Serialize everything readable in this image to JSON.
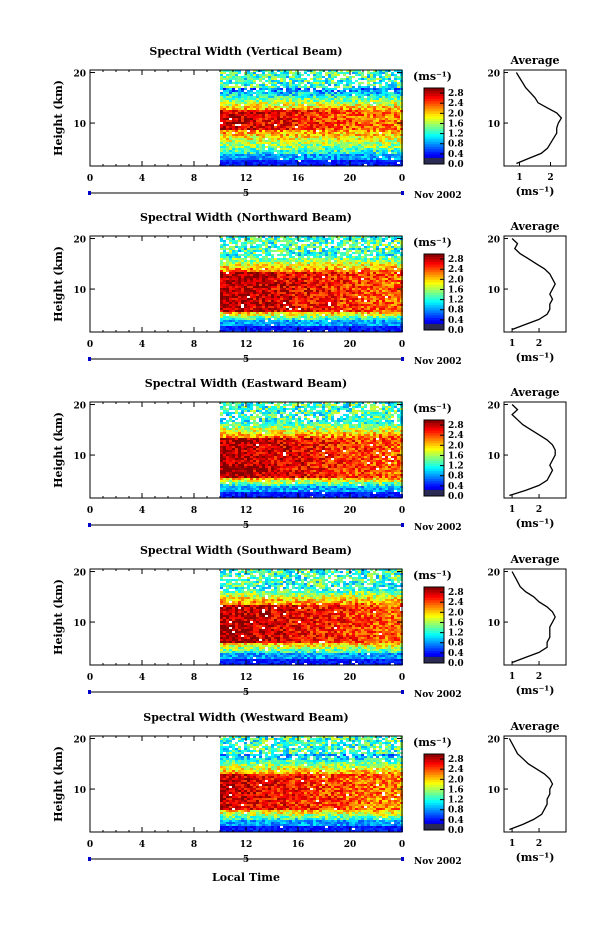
{
  "chart_data": [
    {
      "type": "heatmap",
      "title": "Spectral Width (Vertical Beam)",
      "ylabel": "Height (km)",
      "xlabel": "",
      "date_label": "Nov 2002",
      "day_label": "5",
      "x_ticks": [
        "0",
        "4",
        "8",
        "12",
        "16",
        "20",
        "0"
      ],
      "y_ticks": [
        "10",
        "20"
      ],
      "xlim": [
        0,
        24
      ],
      "ylim": [
        1.5,
        20.5
      ],
      "data_start_hour": 10,
      "core": {
        "low": 8.5,
        "high": 12.5,
        "level": 2.8
      },
      "colorbar": {
        "unit": "(ms⁻¹)",
        "ticks": [
          "0.0",
          "0.4",
          "0.8",
          "1.2",
          "1.6",
          "2.0",
          "2.4",
          "2.8"
        ],
        "range": [
          0,
          3.0
        ]
      },
      "profile": {
        "title": "Average",
        "xlabel": "(ms⁻¹)",
        "x_ticks": [
          "1",
          "2"
        ],
        "xlim": [
          0.5,
          2.5
        ],
        "y_ticks": [
          "10",
          "20"
        ],
        "heights": [
          2,
          3,
          4,
          5,
          6,
          7,
          8,
          9,
          10,
          11,
          12,
          13,
          14,
          15,
          16,
          17,
          18,
          19,
          20
        ],
        "values": [
          0.9,
          1.3,
          1.7,
          1.9,
          2.0,
          2.1,
          2.2,
          2.2,
          2.25,
          2.35,
          2.2,
          1.9,
          1.6,
          1.5,
          1.35,
          1.2,
          1.1,
          1.0,
          0.9
        ]
      }
    },
    {
      "type": "heatmap",
      "title": "Spectral Width (Northward Beam)",
      "ylabel": "Height (km)",
      "xlabel": "",
      "date_label": "Nov 2002",
      "day_label": "5",
      "x_ticks": [
        "0",
        "4",
        "8",
        "12",
        "16",
        "20",
        "0"
      ],
      "y_ticks": [
        "10",
        "20"
      ],
      "xlim": [
        0,
        24
      ],
      "ylim": [
        1.5,
        20.5
      ],
      "data_start_hour": 10,
      "core": {
        "low": 5.5,
        "high": 13.5,
        "level": 2.9
      },
      "colorbar": {
        "unit": "(ms⁻¹)",
        "ticks": [
          "0.0",
          "0.4",
          "0.8",
          "1.2",
          "1.6",
          "2.0",
          "2.4",
          "2.8"
        ],
        "range": [
          0,
          3.0
        ]
      },
      "profile": {
        "title": "Average",
        "xlabel": "(ms⁻¹)",
        "x_ticks": [
          "1",
          "2"
        ],
        "xlim": [
          0.7,
          3.0
        ],
        "y_ticks": [
          "10",
          "20"
        ],
        "heights": [
          2,
          3,
          4,
          5,
          6,
          7,
          8,
          9,
          10,
          11,
          12,
          13,
          14,
          15,
          16,
          17,
          18,
          19,
          20
        ],
        "values": [
          1.0,
          1.5,
          2.0,
          2.3,
          2.4,
          2.4,
          2.5,
          2.4,
          2.5,
          2.6,
          2.5,
          2.4,
          2.2,
          1.9,
          1.6,
          1.3,
          1.1,
          1.2,
          1.0
        ]
      }
    },
    {
      "type": "heatmap",
      "title": "Spectral Width (Eastward Beam)",
      "ylabel": "Height (km)",
      "xlabel": "",
      "date_label": "Nov 2002",
      "day_label": "5",
      "x_ticks": [
        "0",
        "4",
        "8",
        "12",
        "16",
        "20",
        "0"
      ],
      "y_ticks": [
        "10",
        "20"
      ],
      "xlim": [
        0,
        24
      ],
      "ylim": [
        1.5,
        20.5
      ],
      "data_start_hour": 10,
      "core": {
        "low": 5.5,
        "high": 13.5,
        "level": 2.9
      },
      "colorbar": {
        "unit": "(ms⁻¹)",
        "ticks": [
          "0.0",
          "0.4",
          "0.8",
          "1.2",
          "1.6",
          "2.0",
          "2.4",
          "2.8"
        ],
        "range": [
          0,
          3.0
        ]
      },
      "profile": {
        "title": "Average",
        "xlabel": "(ms⁻¹)",
        "x_ticks": [
          "1",
          "2"
        ],
        "xlim": [
          0.7,
          3.0
        ],
        "y_ticks": [
          "10",
          "20"
        ],
        "heights": [
          2,
          3,
          4,
          5,
          6,
          7,
          8,
          9,
          10,
          11,
          12,
          13,
          14,
          15,
          16,
          17,
          18,
          19,
          20
        ],
        "values": [
          0.9,
          1.5,
          2.0,
          2.3,
          2.4,
          2.5,
          2.4,
          2.5,
          2.6,
          2.6,
          2.5,
          2.3,
          2.0,
          1.7,
          1.4,
          1.2,
          1.0,
          1.2,
          1.0
        ]
      }
    },
    {
      "type": "heatmap",
      "title": "Spectral Width (Southward Beam)",
      "ylabel": "Height (km)",
      "xlabel": "",
      "date_label": "Nov 2002",
      "day_label": "5",
      "x_ticks": [
        "0",
        "4",
        "8",
        "12",
        "16",
        "20",
        "0"
      ],
      "y_ticks": [
        "10",
        "20"
      ],
      "xlim": [
        0,
        24
      ],
      "ylim": [
        1.5,
        20.5
      ],
      "data_start_hour": 10,
      "core": {
        "low": 6.0,
        "high": 13.5,
        "level": 2.9
      },
      "colorbar": {
        "unit": "(ms⁻¹)",
        "ticks": [
          "0.0",
          "0.4",
          "0.8",
          "1.2",
          "1.6",
          "2.0",
          "2.4",
          "2.8"
        ],
        "range": [
          0,
          3.0
        ]
      },
      "profile": {
        "title": "Average",
        "xlabel": "(ms⁻¹)",
        "x_ticks": [
          "1",
          "2"
        ],
        "xlim": [
          0.7,
          3.0
        ],
        "y_ticks": [
          "10",
          "20"
        ],
        "heights": [
          2,
          3,
          4,
          5,
          6,
          7,
          8,
          9,
          10,
          11,
          12,
          13,
          14,
          15,
          16,
          17,
          18,
          19,
          20
        ],
        "values": [
          1.0,
          1.5,
          2.0,
          2.3,
          2.3,
          2.4,
          2.4,
          2.4,
          2.5,
          2.6,
          2.5,
          2.3,
          2.0,
          1.8,
          1.5,
          1.3,
          1.2,
          1.1,
          1.0
        ]
      }
    },
    {
      "type": "heatmap",
      "title": "Spectral Width (Westward Beam)",
      "ylabel": "Height (km)",
      "xlabel": "Local Time",
      "date_label": "Nov 2002",
      "day_label": "5",
      "x_ticks": [
        "0",
        "4",
        "8",
        "12",
        "16",
        "20",
        "0"
      ],
      "y_ticks": [
        "10",
        "20"
      ],
      "xlim": [
        0,
        24
      ],
      "ylim": [
        1.5,
        20.5
      ],
      "data_start_hour": 10,
      "core": {
        "low": 6.0,
        "high": 13.0,
        "level": 2.8
      },
      "colorbar": {
        "unit": "(ms⁻¹)",
        "ticks": [
          "0.0",
          "0.4",
          "0.8",
          "1.2",
          "1.6",
          "2.0",
          "2.4",
          "2.8"
        ],
        "range": [
          0,
          3.0
        ]
      },
      "profile": {
        "title": "Average",
        "xlabel": "(ms⁻¹)",
        "x_ticks": [
          "1",
          "2"
        ],
        "xlim": [
          0.7,
          3.0
        ],
        "y_ticks": [
          "10",
          "20"
        ],
        "heights": [
          2,
          3,
          4,
          5,
          6,
          7,
          8,
          9,
          10,
          11,
          12,
          13,
          14,
          15,
          16,
          17,
          18,
          19,
          20
        ],
        "values": [
          0.9,
          1.4,
          1.8,
          2.1,
          2.2,
          2.3,
          2.3,
          2.4,
          2.4,
          2.5,
          2.4,
          2.2,
          1.9,
          1.6,
          1.4,
          1.2,
          1.1,
          1.0,
          0.9
        ]
      }
    }
  ]
}
